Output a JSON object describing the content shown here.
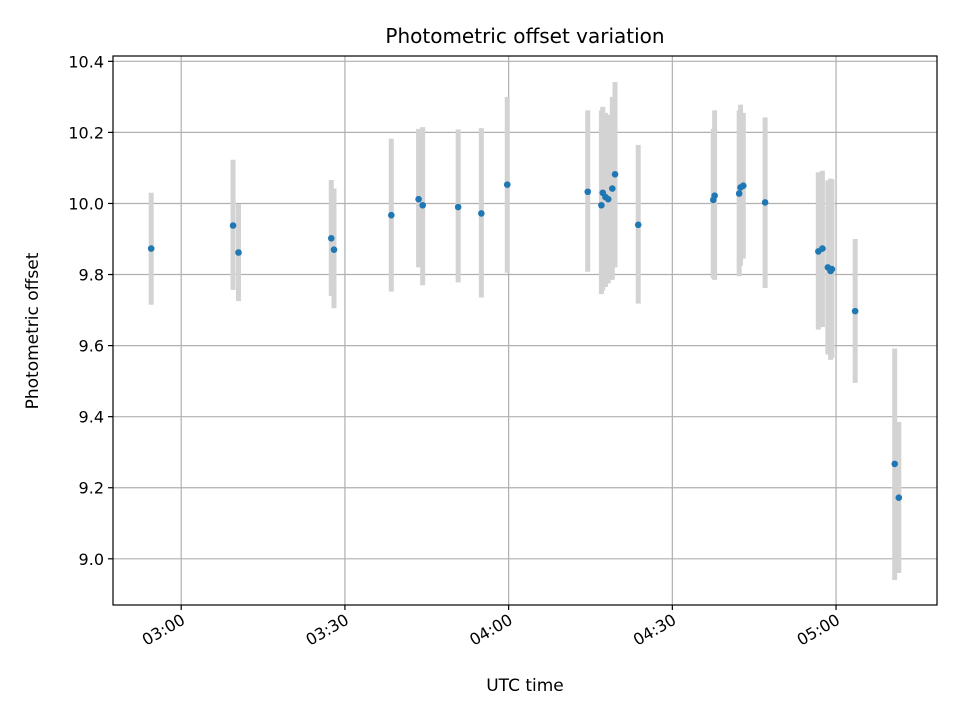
{
  "chart_data": {
    "type": "scatter",
    "title": "Photometric offset variation",
    "xlabel": "UTC time",
    "ylabel": "Photometric offset",
    "x_tick_labels": [
      "03:00",
      "03:30",
      "04:00",
      "04:30",
      "05:00"
    ],
    "x_ticks": [
      "03:00",
      "03:30",
      "04:00",
      "04:30",
      "05:00"
    ],
    "xlim": [
      "02:47:30",
      "05:18:30"
    ],
    "y_ticks": [
      9.0,
      9.2,
      9.4,
      9.6,
      9.8,
      10.0,
      10.2,
      10.4
    ],
    "y_tick_labels": [
      "9.0",
      "9.2",
      "9.4",
      "9.6",
      "9.8",
      "10.0",
      "10.2",
      "10.4"
    ],
    "ylim": [
      8.87,
      10.415
    ],
    "grid": true,
    "point_color": "#1f77b4",
    "errorbar_color": "#d3d3d3",
    "points": [
      {
        "t": "02:54:30",
        "y": 9.873,
        "lo": 9.715,
        "hi": 10.03
      },
      {
        "t": "03:09:30",
        "y": 9.938,
        "lo": 9.757,
        "hi": 10.123
      },
      {
        "t": "03:10:30",
        "y": 9.862,
        "lo": 9.725,
        "hi": 9.998
      },
      {
        "t": "03:27:30",
        "y": 9.902,
        "lo": 9.74,
        "hi": 10.066
      },
      {
        "t": "03:28:00",
        "y": 9.87,
        "lo": 9.705,
        "hi": 10.042
      },
      {
        "t": "03:38:30",
        "y": 9.967,
        "lo": 9.752,
        "hi": 10.182
      },
      {
        "t": "03:43:30",
        "y": 10.012,
        "lo": 9.82,
        "hi": 10.21
      },
      {
        "t": "03:44:15",
        "y": 9.995,
        "lo": 9.77,
        "hi": 10.215
      },
      {
        "t": "03:50:45",
        "y": 9.99,
        "lo": 9.778,
        "hi": 10.208
      },
      {
        "t": "03:55:00",
        "y": 9.972,
        "lo": 9.735,
        "hi": 10.212
      },
      {
        "t": "03:59:45",
        "y": 10.053,
        "lo": 9.805,
        "hi": 10.3
      },
      {
        "t": "04:14:30",
        "y": 10.033,
        "lo": 9.808,
        "hi": 10.262
      },
      {
        "t": "04:17:00",
        "y": 9.995,
        "lo": 9.745,
        "hi": 10.262
      },
      {
        "t": "04:17:15",
        "y": 10.03,
        "lo": 9.755,
        "hi": 10.272
      },
      {
        "t": "04:17:45",
        "y": 10.018,
        "lo": 9.765,
        "hi": 10.255
      },
      {
        "t": "04:18:15",
        "y": 10.012,
        "lo": 9.775,
        "hi": 10.25
      },
      {
        "t": "04:19:00",
        "y": 10.042,
        "lo": 9.785,
        "hi": 10.3
      },
      {
        "t": "04:19:30",
        "y": 10.082,
        "lo": 9.82,
        "hi": 10.342
      },
      {
        "t": "04:23:45",
        "y": 9.94,
        "lo": 9.718,
        "hi": 10.165
      },
      {
        "t": "04:37:30",
        "y": 10.01,
        "lo": 9.79,
        "hi": 10.21
      },
      {
        "t": "04:37:45",
        "y": 10.022,
        "lo": 9.785,
        "hi": 10.262
      },
      {
        "t": "04:42:15",
        "y": 10.028,
        "lo": 9.795,
        "hi": 10.262
      },
      {
        "t": "04:42:30",
        "y": 10.045,
        "lo": 9.825,
        "hi": 10.278
      },
      {
        "t": "04:43:00",
        "y": 10.05,
        "lo": 9.845,
        "hi": 10.255
      },
      {
        "t": "04:47:00",
        "y": 10.003,
        "lo": 9.762,
        "hi": 10.242
      },
      {
        "t": "04:56:45",
        "y": 9.865,
        "lo": 9.645,
        "hi": 10.088
      },
      {
        "t": "04:57:30",
        "y": 9.873,
        "lo": 9.652,
        "hi": 10.092
      },
      {
        "t": "04:58:30",
        "y": 9.82,
        "lo": 9.575,
        "hi": 10.065
      },
      {
        "t": "04:59:00",
        "y": 9.81,
        "lo": 9.56,
        "hi": 10.07
      },
      {
        "t": "04:59:15",
        "y": 9.815,
        "lo": 9.565,
        "hi": 10.068
      },
      {
        "t": "05:03:30",
        "y": 9.697,
        "lo": 9.495,
        "hi": 9.9
      },
      {
        "t": "05:10:45",
        "y": 9.267,
        "lo": 8.94,
        "hi": 9.592
      },
      {
        "t": "05:11:30",
        "y": 9.172,
        "lo": 8.96,
        "hi": 9.385
      }
    ]
  }
}
